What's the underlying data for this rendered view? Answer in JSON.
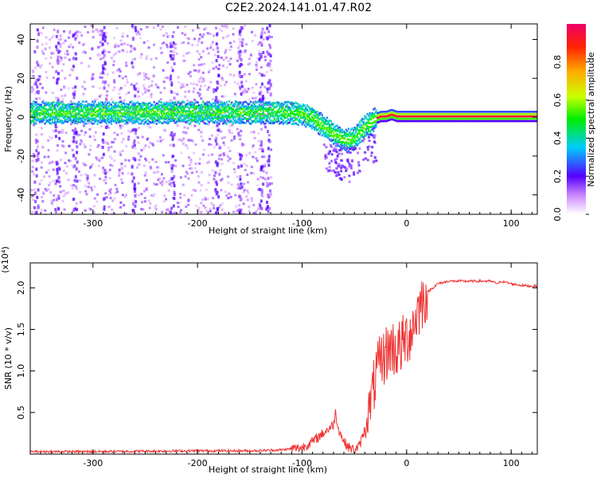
{
  "title": "C2E2.2024.141.01.47.R02",
  "chart_data": [
    {
      "type": "heatmap",
      "xlabel": "Height of straight line (km)",
      "ylabel": "Frequency (Hz)",
      "xlim": [
        -360,
        125
      ],
      "ylim": [
        -50,
        48
      ],
      "xticks": [
        -300,
        -200,
        -100,
        0,
        100
      ],
      "yticks": [
        -40,
        -20,
        0,
        20,
        40
      ],
      "colorbar": {
        "label": "Normalized spectral amplitude",
        "range": [
          0,
          1
        ],
        "ticks": [
          0.0,
          0.2,
          0.4,
          0.6,
          0.8
        ]
      },
      "ridge": {
        "x": [
          -360,
          -300,
          -200,
          -130,
          -110,
          -100,
          -90,
          -80,
          -70,
          -60,
          -55,
          -50,
          -45,
          -40,
          -35,
          -30,
          -25,
          -20,
          -15,
          -10,
          0,
          20,
          60,
          100,
          125
        ],
        "y": [
          3,
          3,
          3,
          3,
          3,
          2,
          0,
          -4,
          -8,
          -11,
          -11,
          -10,
          -7,
          -4,
          -2,
          0,
          1,
          1,
          2,
          1,
          1,
          1,
          1,
          1,
          1
        ]
      }
    },
    {
      "type": "line",
      "xlabel": "Height of straight line (km)",
      "ylabel": "SNR (10 * v/v)",
      "scale_label": "(x10⁴)",
      "xlim": [
        -360,
        125
      ],
      "ylim": [
        0,
        2.3
      ],
      "xticks": [
        -300,
        -200,
        -100,
        0,
        100
      ],
      "yticks": [
        0.5,
        1.0,
        1.5,
        2.0
      ],
      "series": [
        {
          "color": "#ee3333",
          "x": [
            -360,
            -300,
            -200,
            -150,
            -120,
            -100,
            -90,
            -80,
            -75,
            -70,
            -68,
            -65,
            -60,
            -55,
            -50,
            -45,
            -40,
            -35,
            -30,
            -25,
            -20,
            -15,
            -10,
            -5,
            0,
            5,
            10,
            15,
            20,
            25,
            30,
            40,
            60,
            80,
            88,
            90,
            100,
            110,
            120,
            125
          ],
          "y": [
            0.03,
            0.03,
            0.04,
            0.04,
            0.05,
            0.08,
            0.15,
            0.25,
            0.3,
            0.35,
            0.5,
            0.3,
            0.15,
            0.08,
            0.05,
            0.1,
            0.3,
            0.6,
            0.9,
            1.1,
            1.2,
            1.3,
            1.25,
            1.3,
            1.4,
            1.5,
            1.7,
            1.85,
            1.95,
            2.0,
            2.05,
            2.08,
            2.08,
            2.08,
            2.05,
            2.08,
            2.05,
            2.03,
            2.02,
            2.02
          ]
        }
      ]
    }
  ]
}
